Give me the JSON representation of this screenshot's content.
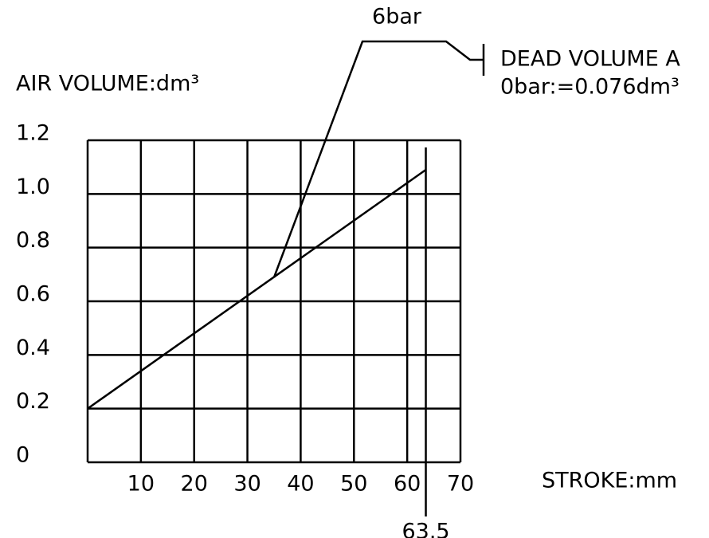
{
  "chart_data": {
    "type": "line",
    "ylabel": "AIR VOLUME:dm³",
    "xlabel": "STROKE:mm",
    "annotations": [
      "6bar",
      "DEAD VOLUME A",
      "0bar:=0.076dm³"
    ],
    "x": [
      0,
      63.5
    ],
    "series": [
      {
        "color": "#000000",
        "values": [
          0.2,
          1.09
        ]
      }
    ],
    "x_marker": 63.5,
    "xlim": [
      0,
      70
    ],
    "xticks": [
      10,
      20,
      30,
      40,
      50,
      60,
      70
    ],
    "ylim": [
      0,
      1.2
    ],
    "yticks": [
      0,
      0.2,
      0.4,
      0.6,
      0.8,
      {
        "value": 1.0,
        "label": "1.0"
      },
      1.2
    ],
    "grid": true
  }
}
